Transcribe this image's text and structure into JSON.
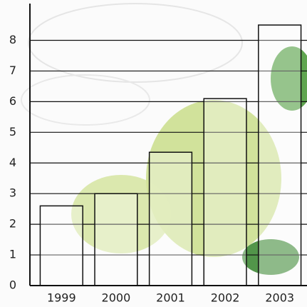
{
  "chart_data": {
    "type": "bar",
    "categories": [
      "1999",
      "2000",
      "2001",
      "2002",
      "2003"
    ],
    "values": [
      2.6,
      3.0,
      4.35,
      6.1,
      8.5
    ],
    "color": "#ffffff",
    "ylim": [
      0,
      9.2
    ],
    "yticks": [
      0,
      1,
      2,
      3,
      4,
      5,
      6,
      7,
      8
    ],
    "grid": true
  }
}
